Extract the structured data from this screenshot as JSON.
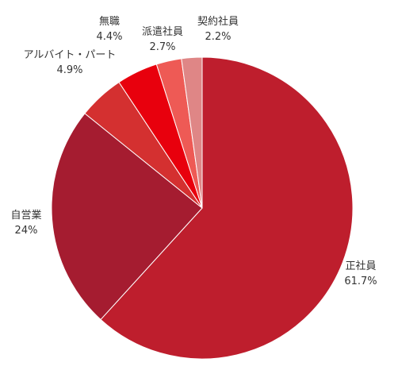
{
  "chart_data": {
    "type": "pie",
    "slices": [
      {
        "label": "正社員",
        "value": 61.7,
        "value_label": "61.7%",
        "color": "#be1e2d"
      },
      {
        "label": "自営業",
        "value": 24,
        "value_label": "24%",
        "color": "#a51c30"
      },
      {
        "label": "アルバイト・パート",
        "value": 4.9,
        "value_label": "4.9%",
        "color": "#d43030"
      },
      {
        "label": "無職",
        "value": 4.4,
        "value_label": "4.4%",
        "color": "#e8000d"
      },
      {
        "label": "派遣社員",
        "value": 2.7,
        "value_label": "2.7%",
        "color": "#ee5a55"
      },
      {
        "label": "契約社員",
        "value": 2.2,
        "value_label": "2.2%",
        "color": "#df8686"
      }
    ],
    "start": "12 o'clock",
    "direction": "clockwise",
    "legend": "none"
  }
}
